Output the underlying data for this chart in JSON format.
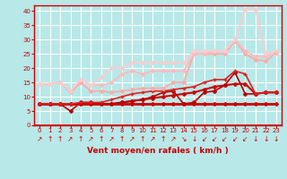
{
  "xlabel": "Vent moyen/en rafales ( km/h )",
  "xlim": [
    -0.5,
    23.5
  ],
  "ylim": [
    0,
    42
  ],
  "yticks": [
    0,
    5,
    10,
    15,
    20,
    25,
    30,
    35,
    40
  ],
  "xticks": [
    0,
    1,
    2,
    3,
    4,
    5,
    6,
    7,
    8,
    9,
    10,
    11,
    12,
    13,
    14,
    15,
    16,
    17,
    18,
    19,
    20,
    21,
    22,
    23
  ],
  "bg_color": "#b8e8e8",
  "grid_color": "#ffffff",
  "lines": [
    {
      "x": [
        0,
        1,
        2,
        3,
        4,
        5,
        6,
        7,
        8,
        9,
        10,
        11,
        12,
        13,
        14,
        15,
        16,
        17,
        18,
        19,
        20,
        21,
        22,
        23
      ],
      "y": [
        7.5,
        7.5,
        7.5,
        7.5,
        7.5,
        7.5,
        7.5,
        7.5,
        7.5,
        7.5,
        7.5,
        7.5,
        7.5,
        7.5,
        7.5,
        7.5,
        7.5,
        7.5,
        7.5,
        7.5,
        7.5,
        7.5,
        7.5,
        7.5
      ],
      "color": "#cc0000",
      "lw": 2.0,
      "marker": "D",
      "ms": 2.0
    },
    {
      "x": [
        0,
        1,
        2,
        3,
        4,
        5,
        6,
        7,
        8,
        9,
        10,
        11,
        12,
        13,
        14,
        15,
        16,
        17,
        18,
        19,
        20,
        21,
        22,
        23
      ],
      "y": [
        7.5,
        7.5,
        7.5,
        7.5,
        7.5,
        7.5,
        7.5,
        7.5,
        8,
        8.5,
        9,
        9.5,
        10,
        10.5,
        11,
        11.5,
        12.5,
        13.5,
        14,
        14.5,
        14.5,
        11,
        11.5,
        11.5
      ],
      "color": "#cc0000",
      "lw": 1.5,
      "marker": "D",
      "ms": 2.0
    },
    {
      "x": [
        0,
        1,
        2,
        3,
        4,
        5,
        6,
        7,
        8,
        9,
        10,
        11,
        12,
        13,
        14,
        15,
        16,
        17,
        18,
        19,
        20,
        21,
        22,
        23
      ],
      "y": [
        7.5,
        7.5,
        7.5,
        5,
        8,
        8,
        7.5,
        7.5,
        8,
        8.5,
        9,
        10,
        11.5,
        12,
        7.5,
        8,
        11.5,
        12,
        14,
        18.5,
        11,
        11,
        11.5,
        11.5
      ],
      "color": "#bb0000",
      "lw": 1.2,
      "marker": "D",
      "ms": 2.0
    },
    {
      "x": [
        0,
        1,
        2,
        3,
        4,
        5,
        6,
        7,
        8,
        9,
        10,
        11,
        12,
        13,
        14,
        15,
        16,
        17,
        18,
        19,
        20,
        21,
        22,
        23
      ],
      "y": [
        7.5,
        7.5,
        7.5,
        7.5,
        8,
        8,
        8,
        9,
        10,
        11,
        11.5,
        12,
        12,
        12.5,
        13,
        13.5,
        15,
        16,
        16,
        19,
        18,
        11,
        11.5,
        11.5
      ],
      "color": "#dd2222",
      "lw": 1.2,
      "marker": "+",
      "ms": 3.0
    },
    {
      "x": [
        0,
        1,
        2,
        3,
        4,
        5,
        6,
        7,
        8,
        9,
        10,
        11,
        12,
        13,
        14,
        15,
        16,
        17,
        18,
        19,
        20,
        21,
        22,
        23
      ],
      "y": [
        14.5,
        14.5,
        15,
        11.5,
        15,
        12,
        12,
        11.5,
        12,
        12.5,
        13,
        13,
        13,
        15,
        15,
        25,
        25,
        25,
        25,
        29.5,
        25,
        23,
        22.5,
        25.5
      ],
      "color": "#ffaaaa",
      "lw": 1.3,
      "marker": "D",
      "ms": 2.0
    },
    {
      "x": [
        0,
        1,
        2,
        3,
        4,
        5,
        6,
        7,
        8,
        9,
        10,
        11,
        12,
        13,
        14,
        15,
        16,
        17,
        18,
        19,
        20,
        21,
        22,
        23
      ],
      "y": [
        14.5,
        14.5,
        15,
        12,
        16,
        14,
        14,
        15,
        18,
        19,
        18,
        19,
        19,
        19,
        19,
        25,
        25,
        26,
        26,
        30,
        26,
        24,
        24,
        26
      ],
      "color": "#ffbbbb",
      "lw": 1.3,
      "marker": "D",
      "ms": 2.0
    },
    {
      "x": [
        0,
        1,
        2,
        3,
        4,
        5,
        6,
        7,
        8,
        9,
        10,
        11,
        12,
        13,
        14,
        15,
        16,
        17,
        18,
        19,
        20,
        21,
        22,
        23
      ],
      "y": [
        14.5,
        14.5,
        15,
        12,
        16,
        14,
        17,
        20,
        20,
        22,
        22,
        22,
        22,
        22,
        22,
        26,
        26,
        26,
        26,
        30,
        40.5,
        40.5,
        25,
        26
      ],
      "color": "#ffcccc",
      "lw": 1.3,
      "marker": "D",
      "ms": 2.0
    }
  ],
  "arrow_labels": [
    "↗",
    "↑",
    "↑",
    "↗",
    "↑",
    "↗",
    "↑",
    "↗",
    "↑",
    "↗",
    "↑",
    "↗",
    "↑",
    "↗",
    "↘",
    "↓",
    "↙",
    "↙",
    "↙",
    "↙",
    "↙",
    "↓",
    "↓",
    "↓"
  ],
  "tick_color": "#cc0000",
  "axis_color": "#cc0000",
  "label_color": "#cc0000"
}
